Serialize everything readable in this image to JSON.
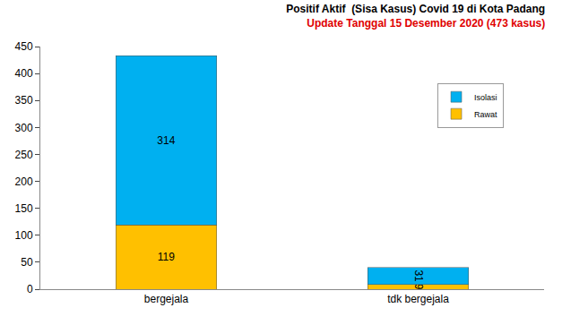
{
  "chart_data": {
    "type": "bar",
    "title": "Positif Aktif  (Sisa Kasus) Covid 19 di Kota Padang",
    "subtitle": "Update Tanggal 15 Desember 2020 (473 kasus)",
    "categories": [
      "bergejala",
      "tdk bergejala"
    ],
    "series": [
      {
        "name": "Rawat",
        "color": "#ffc000",
        "values": [
          119,
          9
        ]
      },
      {
        "name": "Isolasi",
        "color": "#00b0f0",
        "values": [
          314,
          31
        ]
      }
    ],
    "stacked": true,
    "data_labels": true,
    "legend": "upper right",
    "grid": false,
    "ylim": [
      0,
      450
    ],
    "yticks": [
      0,
      50,
      100,
      150,
      200,
      250,
      300,
      350,
      400,
      450
    ]
  }
}
